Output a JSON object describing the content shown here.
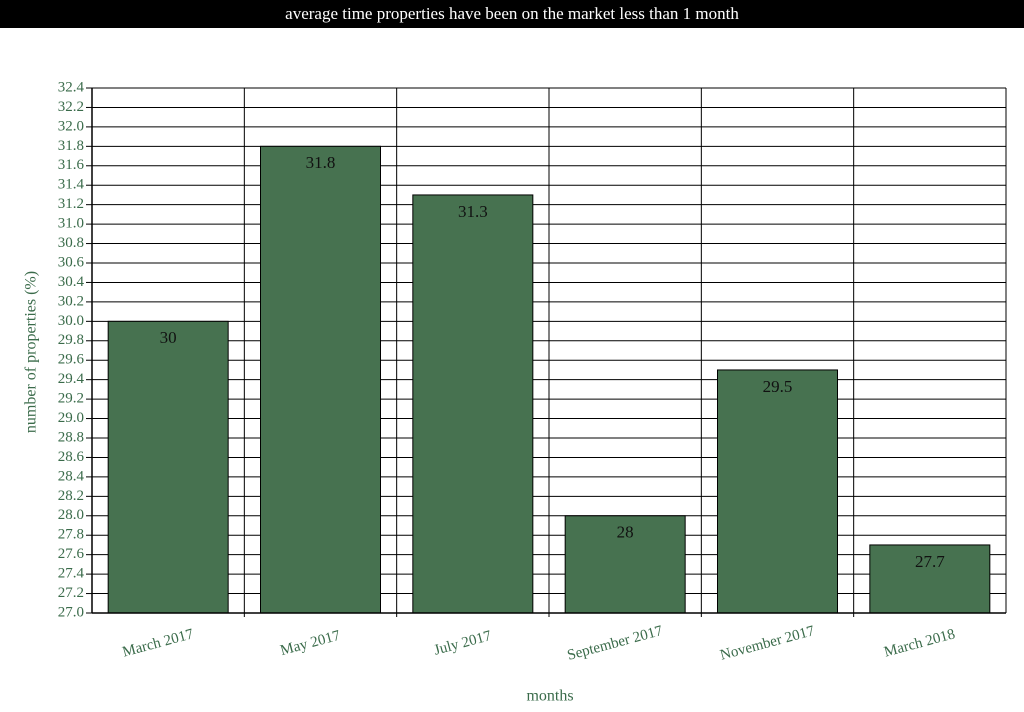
{
  "chart_data": {
    "type": "bar",
    "title": "average time properties have been on the market less than 1 month",
    "x_label": "months",
    "y_label": "number of properties (%)",
    "categories": [
      "March 2017",
      "May 2017",
      "July 2017",
      "September 2017",
      "November 2017",
      "March 2018"
    ],
    "values": [
      30,
      31.8,
      31.3,
      28,
      29.5,
      27.7
    ],
    "color": "#477250",
    "ylim": [
      27,
      32.4
    ],
    "yticks": [
      {
        "value": 27,
        "label": "27.0"
      },
      27.2,
      27.4,
      27.6,
      27.8,
      {
        "value": 28,
        "label": "28.0"
      },
      28.2,
      28.4,
      28.6,
      28.8,
      {
        "value": 29,
        "label": "29.0"
      },
      29.2,
      29.4,
      29.6,
      29.8,
      {
        "value": 30,
        "label": "30.0"
      },
      30.2,
      30.4,
      30.6,
      30.8,
      {
        "value": 31,
        "label": "31.0"
      },
      31.2,
      31.4,
      31.6,
      31.8,
      {
        "value": 32,
        "label": "32.0"
      },
      32.2,
      32.4
    ],
    "grid": true
  }
}
